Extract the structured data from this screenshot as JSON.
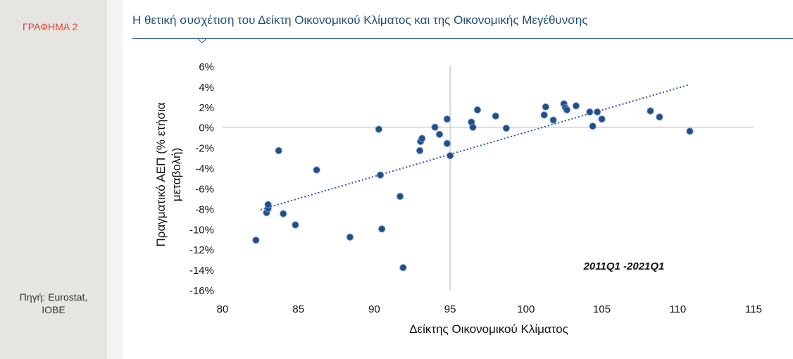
{
  "figure_label": "ΓΡΑΦΗΜΑ 2",
  "source": "Πηγή: Eurostat,\nIOBE",
  "title": "Η θετική συσχέτιση του Δείκτη Οικονομικού Κλίματος και της Οικονομικής Μεγέθυνσης",
  "colors": {
    "accent_label": "#e5442d",
    "title": "#1f4e79",
    "points": "#1f4e8c"
  },
  "chart_data": {
    "type": "scatter",
    "xlabel": "Δείκτης Οικονομικού  Κλίματος",
    "ylabel_line1": "Πραγματικό ΑΕΠ (% ετήσια",
    "ylabel_line2": "μεταβολή)",
    "annotation": "2011Q1 -2021Q1",
    "xlim": [
      80,
      115
    ],
    "ylim": [
      -16,
      6
    ],
    "x_ticks": [
      80,
      85,
      90,
      95,
      100,
      105,
      110,
      115
    ],
    "y_ticks": [
      6,
      4,
      2,
      0,
      -2,
      -4,
      -6,
      -8,
      -10,
      -12,
      -14,
      -16
    ],
    "y_tick_labels": [
      "6%",
      "4%",
      "2%",
      "0%",
      "-2%",
      "-4%",
      "-6%",
      "-8%",
      "-10%",
      "-12%",
      "-14%",
      "-16%"
    ],
    "reference_lines": {
      "x": 95,
      "y": 0
    },
    "trendline": {
      "x": [
        82.5,
        110.8
      ],
      "y": [
        -8.1,
        4.2
      ]
    },
    "points": [
      {
        "x": 82.2,
        "y": -11.1
      },
      {
        "x": 82.9,
        "y": -8.4
      },
      {
        "x": 83.0,
        "y": -8.0
      },
      {
        "x": 83.0,
        "y": -7.6
      },
      {
        "x": 83.7,
        "y": -2.3
      },
      {
        "x": 84.0,
        "y": -8.5
      },
      {
        "x": 84.8,
        "y": -9.6
      },
      {
        "x": 86.2,
        "y": -4.2
      },
      {
        "x": 88.4,
        "y": -10.8
      },
      {
        "x": 90.3,
        "y": -0.2
      },
      {
        "x": 90.4,
        "y": -4.7
      },
      {
        "x": 90.5,
        "y": -10.0
      },
      {
        "x": 91.7,
        "y": -6.8
      },
      {
        "x": 91.9,
        "y": -13.8
      },
      {
        "x": 93.0,
        "y": -2.3
      },
      {
        "x": 93.05,
        "y": -1.4
      },
      {
        "x": 93.15,
        "y": -1.1
      },
      {
        "x": 94.0,
        "y": 0.0
      },
      {
        "x": 94.3,
        "y": -0.7
      },
      {
        "x": 94.8,
        "y": 0.8
      },
      {
        "x": 94.8,
        "y": -1.6
      },
      {
        "x": 95.0,
        "y": -2.8
      },
      {
        "x": 96.4,
        "y": 0.5
      },
      {
        "x": 96.5,
        "y": 0.0
      },
      {
        "x": 96.8,
        "y": 1.7
      },
      {
        "x": 98.0,
        "y": 1.1
      },
      {
        "x": 98.7,
        "y": -0.1
      },
      {
        "x": 101.2,
        "y": 1.2
      },
      {
        "x": 101.3,
        "y": 2.0
      },
      {
        "x": 101.8,
        "y": 0.7
      },
      {
        "x": 102.5,
        "y": 2.3
      },
      {
        "x": 102.6,
        "y": 1.9
      },
      {
        "x": 102.7,
        "y": 1.7
      },
      {
        "x": 103.3,
        "y": 2.1
      },
      {
        "x": 104.2,
        "y": 1.5
      },
      {
        "x": 104.4,
        "y": 0.1
      },
      {
        "x": 104.7,
        "y": 1.5
      },
      {
        "x": 105.0,
        "y": 0.8
      },
      {
        "x": 108.2,
        "y": 1.6
      },
      {
        "x": 108.8,
        "y": 1.0
      },
      {
        "x": 110.8,
        "y": -0.4
      }
    ]
  }
}
